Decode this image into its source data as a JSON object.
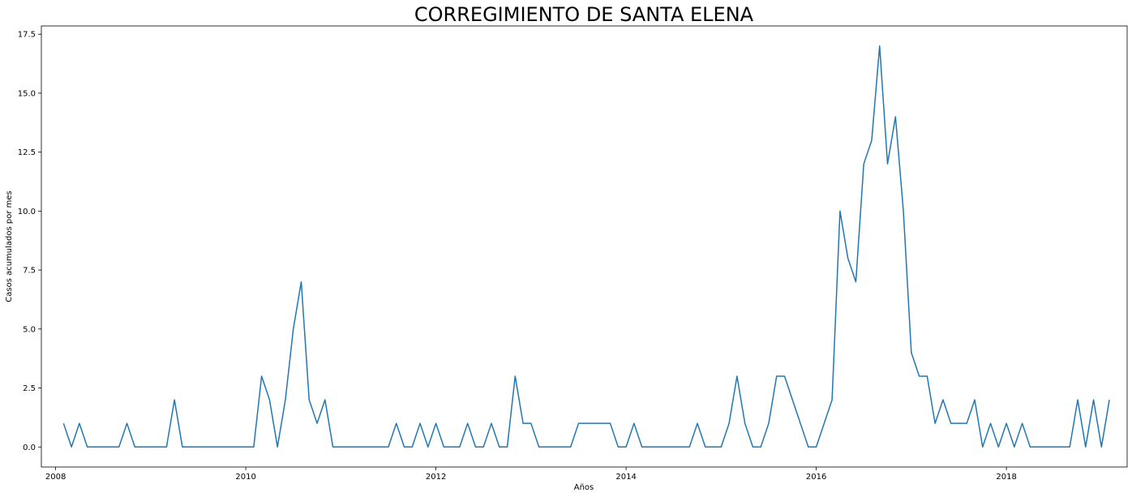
{
  "chart_data": {
    "type": "line",
    "title": "CORREGIMIENTO DE SANTA ELENA",
    "xlabel": "Años",
    "ylabel": "Casos acumulados por mes",
    "xlim": [
      2007.85,
      2019.27
    ],
    "ylim": [
      -0.85,
      17.85
    ],
    "x_ticks": [
      2008,
      2010,
      2012,
      2014,
      2016,
      2018
    ],
    "x_tick_labels": [
      "2008",
      "2010",
      "2012",
      "2014",
      "2016",
      "2018"
    ],
    "y_ticks": [
      0.0,
      2.5,
      5.0,
      7.5,
      10.0,
      12.5,
      15.0,
      17.5
    ],
    "y_tick_labels": [
      "0.0",
      "2.5",
      "5.0",
      "7.5",
      "10.0",
      "12.5",
      "15.0",
      "17.5"
    ],
    "grid": false,
    "color": "#1f77b4",
    "series": [
      {
        "start": "2008-02",
        "frequency": "monthly",
        "values": [
          1,
          0,
          1,
          0,
          0,
          0,
          0,
          0,
          1,
          0,
          0,
          0,
          0,
          0,
          2,
          0,
          0,
          0,
          0,
          0,
          0,
          0,
          0,
          0,
          0,
          3,
          2,
          0,
          2,
          5,
          7,
          2,
          1,
          2,
          0,
          0,
          0,
          0,
          0,
          0,
          0,
          0,
          1,
          0,
          0,
          1,
          0,
          1,
          0,
          0,
          0,
          1,
          0,
          0,
          1,
          0,
          0,
          3,
          1,
          1,
          0,
          0,
          0,
          0,
          0,
          1,
          1,
          1,
          1,
          1,
          0,
          0,
          1,
          0,
          0,
          0,
          0,
          0,
          0,
          0,
          1,
          0,
          0,
          0,
          1,
          3,
          1,
          0,
          0,
          1,
          3,
          3,
          2,
          1,
          0,
          0,
          1,
          2,
          10,
          8,
          7,
          12,
          13,
          17,
          12,
          14,
          10,
          4,
          3,
          3,
          1,
          2,
          1,
          1,
          1,
          2,
          0,
          1,
          0,
          1,
          0,
          1,
          0,
          0,
          0,
          0,
          0,
          0,
          2,
          0,
          2,
          0,
          2
        ]
      }
    ]
  }
}
